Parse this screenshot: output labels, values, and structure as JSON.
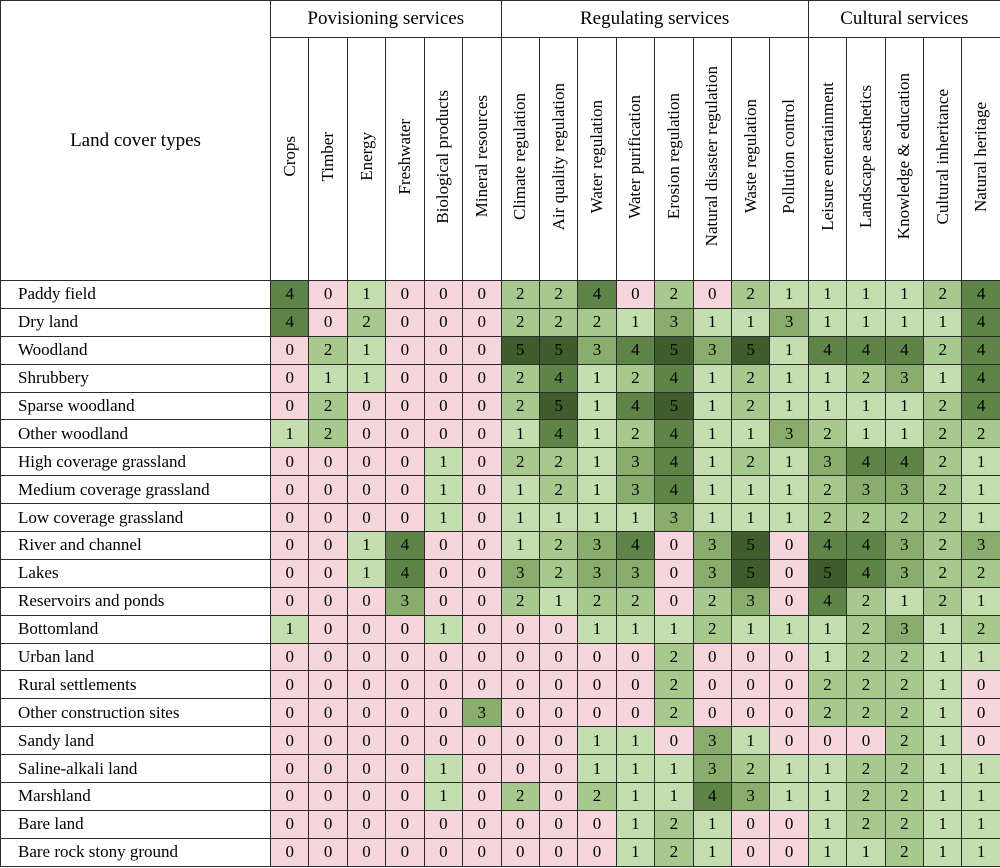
{
  "table": {
    "corner_label": "Land cover types",
    "groups": [
      {
        "label": "Povisioning services",
        "span": 6
      },
      {
        "label": "Regulating services",
        "span": 8
      },
      {
        "label": "Cultural services",
        "span": 5
      }
    ],
    "services": [
      "Crops",
      "Timber",
      "Energy",
      "Freshwater",
      "Biological products",
      "Mineral resources",
      "Climate regulation",
      "Air quality regulation",
      "Water regulation",
      "Water purification",
      "Erosion regulation",
      "Natural disaster regulation",
      "Waste regulation",
      "Pollution control",
      "Leisure entertainment",
      "Landscape aesthetics",
      "Knowledge & education",
      "Cultural inheritance",
      "Natural heritage"
    ],
    "rows": [
      {
        "label": "Paddy field",
        "values": [
          4,
          0,
          1,
          0,
          0,
          0,
          2,
          2,
          4,
          0,
          2,
          0,
          2,
          1,
          1,
          1,
          1,
          2,
          4
        ]
      },
      {
        "label": "Dry land",
        "values": [
          4,
          0,
          2,
          0,
          0,
          0,
          2,
          2,
          2,
          1,
          3,
          1,
          1,
          3,
          1,
          1,
          1,
          1,
          4
        ]
      },
      {
        "label": "Woodland",
        "values": [
          0,
          2,
          1,
          0,
          0,
          0,
          5,
          5,
          3,
          4,
          5,
          3,
          5,
          1,
          4,
          4,
          4,
          2,
          4
        ]
      },
      {
        "label": "Shrubbery",
        "values": [
          0,
          1,
          1,
          0,
          0,
          0,
          2,
          4,
          1,
          2,
          4,
          1,
          2,
          1,
          1,
          2,
          3,
          1,
          4
        ]
      },
      {
        "label": "Sparse woodland",
        "values": [
          0,
          2,
          0,
          0,
          0,
          0,
          2,
          5,
          1,
          4,
          5,
          1,
          2,
          1,
          1,
          1,
          1,
          2,
          4
        ]
      },
      {
        "label": "Other woodland",
        "values": [
          1,
          2,
          0,
          0,
          0,
          0,
          1,
          4,
          1,
          2,
          4,
          1,
          1,
          3,
          2,
          1,
          1,
          2,
          2
        ]
      },
      {
        "label": "High coverage grassland",
        "values": [
          0,
          0,
          0,
          0,
          1,
          0,
          2,
          2,
          1,
          3,
          4,
          1,
          2,
          1,
          3,
          4,
          4,
          2,
          1
        ]
      },
      {
        "label": "Medium coverage grassland",
        "values": [
          0,
          0,
          0,
          0,
          1,
          0,
          1,
          2,
          1,
          3,
          4,
          1,
          1,
          1,
          2,
          3,
          3,
          2,
          1
        ]
      },
      {
        "label": "Low coverage grassland",
        "values": [
          0,
          0,
          0,
          0,
          1,
          0,
          1,
          1,
          1,
          1,
          3,
          1,
          1,
          1,
          2,
          2,
          2,
          2,
          1
        ]
      },
      {
        "label": "River and channel",
        "values": [
          0,
          0,
          1,
          4,
          0,
          0,
          1,
          2,
          3,
          4,
          0,
          3,
          5,
          0,
          4,
          4,
          3,
          2,
          3
        ]
      },
      {
        "label": "Lakes",
        "values": [
          0,
          0,
          1,
          4,
          0,
          0,
          3,
          2,
          3,
          3,
          0,
          3,
          5,
          0,
          5,
          4,
          3,
          2,
          2
        ]
      },
      {
        "label": "Reservoirs and ponds",
        "values": [
          0,
          0,
          0,
          3,
          0,
          0,
          2,
          1,
          2,
          2,
          0,
          2,
          3,
          0,
          4,
          2,
          1,
          2,
          1
        ]
      },
      {
        "label": "Bottomland",
        "values": [
          1,
          0,
          0,
          0,
          1,
          0,
          0,
          0,
          1,
          1,
          1,
          2,
          1,
          1,
          1,
          2,
          3,
          1,
          2
        ]
      },
      {
        "label": "Urban land",
        "values": [
          0,
          0,
          0,
          0,
          0,
          0,
          0,
          0,
          0,
          0,
          2,
          0,
          0,
          0,
          1,
          2,
          2,
          1,
          1
        ]
      },
      {
        "label": "Rural settlements",
        "values": [
          0,
          0,
          0,
          0,
          0,
          0,
          0,
          0,
          0,
          0,
          2,
          0,
          0,
          0,
          2,
          2,
          2,
          1,
          0
        ]
      },
      {
        "label": "Other construction sites",
        "values": [
          0,
          0,
          0,
          0,
          0,
          3,
          0,
          0,
          0,
          0,
          2,
          0,
          0,
          0,
          2,
          2,
          2,
          1,
          0
        ]
      },
      {
        "label": "Sandy land",
        "values": [
          0,
          0,
          0,
          0,
          0,
          0,
          0,
          0,
          1,
          1,
          0,
          3,
          1,
          0,
          0,
          0,
          2,
          1,
          0
        ]
      },
      {
        "label": "Saline-alkali land",
        "values": [
          0,
          0,
          0,
          0,
          1,
          0,
          0,
          0,
          1,
          1,
          1,
          3,
          2,
          1,
          1,
          2,
          2,
          1,
          1
        ]
      },
      {
        "label": "Marshland",
        "values": [
          0,
          0,
          0,
          0,
          1,
          0,
          2,
          0,
          2,
          1,
          1,
          4,
          3,
          1,
          1,
          2,
          2,
          1,
          1
        ]
      },
      {
        "label": "Bare land",
        "values": [
          0,
          0,
          0,
          0,
          0,
          0,
          0,
          0,
          0,
          1,
          2,
          1,
          0,
          0,
          1,
          2,
          2,
          1,
          1
        ]
      },
      {
        "label": "Bare rock stony ground",
        "values": [
          0,
          0,
          0,
          0,
          0,
          0,
          0,
          0,
          0,
          1,
          2,
          1,
          0,
          0,
          1,
          1,
          2,
          1,
          1
        ]
      }
    ],
    "level_colors": {
      "0": "#f5d6dc",
      "1": "#c5deb0",
      "2": "#a8c98d",
      "3": "#88ad6d",
      "4": "#5f8447",
      "5": "#3f5c2d"
    }
  }
}
